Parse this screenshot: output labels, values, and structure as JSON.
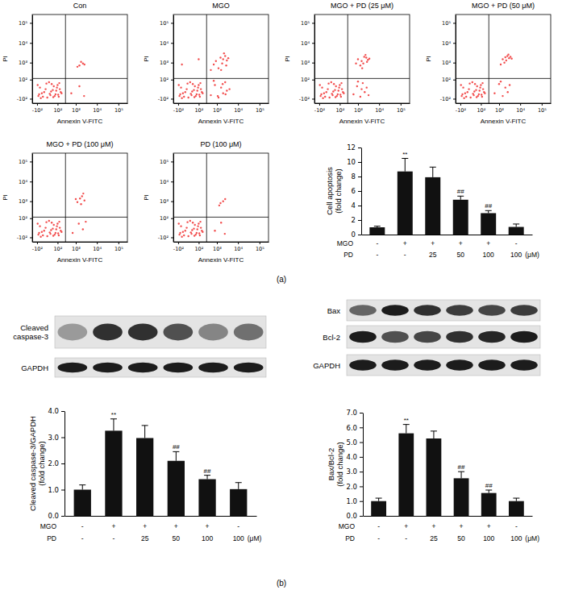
{
  "chart_data": [
    {
      "type": "scatter",
      "title": "Con",
      "xlabel": "Annexin V-FITC",
      "ylabel": "PI",
      "log": true,
      "color": "#f24e4e",
      "xlim": [
        -200,
        262144
      ],
      "ylim": [
        -200,
        262144
      ],
      "xticks": [
        {
          "value": -100,
          "label": "-10²"
        },
        {
          "value": 100,
          "label": "10²"
        },
        {
          "value": 1000,
          "label": "10³"
        },
        {
          "value": 10000,
          "label": "10⁴"
        },
        {
          "value": 100000,
          "label": "10⁵"
        }
      ],
      "yticks": [
        {
          "value": -100,
          "label": "-10²"
        },
        {
          "value": 100,
          "label": "10²"
        },
        {
          "value": 1000,
          "label": "10³"
        },
        {
          "value": 10000,
          "label": "10⁴"
        },
        {
          "value": 100000,
          "label": "10⁵"
        }
      ],
      "quadrant": {
        "x": 300,
        "y": 120
      },
      "x": [
        -80,
        -40,
        -10,
        20,
        50,
        80,
        120,
        160,
        -60,
        0,
        30,
        70,
        100,
        140,
        -20,
        10,
        60,
        90,
        -50,
        40,
        -90,
        -30,
        15,
        45,
        110,
        180,
        -70,
        25,
        130,
        -5,
        1500,
        2200,
        1800,
        2600,
        1200,
        600,
        1500,
        2500
      ],
      "values": [
        -60,
        -30,
        0,
        -50,
        20,
        -10,
        -70,
        -20,
        10,
        -80,
        40,
        -40,
        30,
        0,
        -20,
        60,
        -60,
        10,
        -90,
        -5,
        30,
        -70,
        -35,
        -75,
        -45,
        -30,
        -40,
        -15,
        50,
        45,
        700,
        900,
        1100,
        800,
        600,
        -30,
        20,
        -60
      ]
    },
    {
      "type": "scatter",
      "title": "MGO",
      "xlabel": "Annexin V-FITC",
      "ylabel": "PI",
      "log": true,
      "color": "#f24e4e",
      "xlim": [
        -200,
        262144
      ],
      "ylim": [
        -200,
        262144
      ],
      "xticks": [
        {
          "value": -100,
          "label": "-10²"
        },
        {
          "value": 100,
          "label": "10²"
        },
        {
          "value": 1000,
          "label": "10³"
        },
        {
          "value": 10000,
          "label": "10⁴"
        },
        {
          "value": 100000,
          "label": "10⁵"
        }
      ],
      "yticks": [
        {
          "value": -100,
          "label": "-10²"
        },
        {
          "value": 100,
          "label": "10²"
        },
        {
          "value": 1000,
          "label": "10³"
        },
        {
          "value": 10000,
          "label": "10⁴"
        },
        {
          "value": 100000,
          "label": "10⁵"
        }
      ],
      "quadrant": {
        "x": 300,
        "y": 120
      },
      "x": [
        -80,
        -40,
        -10,
        20,
        50,
        80,
        120,
        160,
        -60,
        0,
        30,
        70,
        100,
        140,
        -20,
        10,
        60,
        90,
        -50,
        40,
        -90,
        -30,
        15,
        45,
        110,
        180,
        -70,
        25,
        130,
        -5,
        900,
        1500,
        2000,
        2500,
        3000,
        1200,
        1800,
        2200,
        3500,
        700,
        1600,
        2800,
        500,
        800,
        1200,
        1600,
        2000,
        2500,
        3000,
        700,
        1100,
        1900,
        2600,
        4000,
        -50,
        100,
        500
      ],
      "values": [
        -60,
        -30,
        0,
        -50,
        20,
        -10,
        -70,
        -20,
        10,
        -80,
        40,
        -40,
        30,
        0,
        -20,
        60,
        -60,
        10,
        -90,
        -5,
        30,
        -70,
        -35,
        -75,
        -45,
        -30,
        -40,
        -15,
        50,
        45,
        1200,
        1800,
        1500,
        2200,
        1300,
        500,
        900,
        3000,
        1700,
        800,
        400,
        700,
        -50,
        30,
        -80,
        10,
        -30,
        60,
        -10,
        80,
        -60,
        40,
        -40,
        0,
        800,
        1500,
        400
      ]
    },
    {
      "type": "scatter",
      "title": "MGO + PD (25 μM)",
      "xlabel": "Annexin V-FITC",
      "ylabel": "PI",
      "log": true,
      "color": "#f24e4e",
      "xlim": [
        -200,
        262144
      ],
      "ylim": [
        -200,
        262144
      ],
      "xticks": [
        {
          "value": -100,
          "label": "-10²"
        },
        {
          "value": 100,
          "label": "10²"
        },
        {
          "value": 1000,
          "label": "10³"
        },
        {
          "value": 10000,
          "label": "10⁴"
        },
        {
          "value": 100000,
          "label": "10⁵"
        }
      ],
      "yticks": [
        {
          "value": -100,
          "label": "-10²"
        },
        {
          "value": 100,
          "label": "10²"
        },
        {
          "value": 1000,
          "label": "10³"
        },
        {
          "value": 10000,
          "label": "10⁴"
        },
        {
          "value": 100000,
          "label": "10⁵"
        }
      ],
      "quadrant": {
        "x": 300,
        "y": 120
      },
      "x": [
        -80,
        -40,
        -10,
        20,
        50,
        80,
        120,
        160,
        -60,
        0,
        30,
        70,
        100,
        140,
        -20,
        10,
        60,
        90,
        -50,
        40,
        -90,
        -30,
        15,
        45,
        110,
        180,
        -70,
        25,
        130,
        -5,
        1000,
        1500,
        2000,
        2500,
        3000,
        1300,
        1800,
        2300,
        3500,
        800,
        1600,
        2700,
        600,
        900,
        1300,
        1700,
        2100,
        2600,
        3200,
        1000,
        1500
      ],
      "values": [
        -60,
        -30,
        0,
        -50,
        20,
        -10,
        -70,
        -20,
        10,
        -80,
        40,
        -40,
        30,
        0,
        -20,
        60,
        -60,
        10,
        -90,
        -5,
        30,
        -70,
        -35,
        -75,
        -45,
        -30,
        -40,
        -15,
        50,
        45,
        1500,
        1200,
        2000,
        1800,
        1400,
        700,
        900,
        2500,
        1600,
        900,
        500,
        1100,
        -40,
        20,
        -70,
        50,
        -20,
        10,
        -50,
        70,
        0
      ]
    },
    {
      "type": "scatter",
      "title": "MGO + PD (50 μM)",
      "xlabel": "Annexin V-FITC",
      "ylabel": "PI",
      "log": true,
      "color": "#f24e4e",
      "xlim": [
        -200,
        262144
      ],
      "ylim": [
        -200,
        262144
      ],
      "xticks": [
        {
          "value": -100,
          "label": "-10²"
        },
        {
          "value": 100,
          "label": "10²"
        },
        {
          "value": 1000,
          "label": "10³"
        },
        {
          "value": 10000,
          "label": "10⁴"
        },
        {
          "value": 100000,
          "label": "10⁵"
        }
      ],
      "yticks": [
        {
          "value": -100,
          "label": "-10²"
        },
        {
          "value": 100,
          "label": "10²"
        },
        {
          "value": 1000,
          "label": "10³"
        },
        {
          "value": 10000,
          "label": "10⁴"
        },
        {
          "value": 100000,
          "label": "10⁵"
        }
      ],
      "quadrant": {
        "x": 300,
        "y": 120
      },
      "x": [
        -80,
        -40,
        -10,
        20,
        50,
        80,
        120,
        160,
        -60,
        0,
        30,
        70,
        100,
        140,
        -20,
        10,
        60,
        90,
        -50,
        40,
        -90,
        -30,
        15,
        45,
        110,
        180,
        -70,
        25,
        130,
        -5,
        1500,
        2000,
        2500,
        3000,
        3500,
        1200,
        2200,
        2800,
        1800,
        4000,
        600,
        1000,
        1500,
        2000,
        2600,
        3200,
        1200
      ],
      "values": [
        -60,
        -30,
        0,
        -50,
        20,
        -10,
        -70,
        -20,
        10,
        -80,
        40,
        -40,
        30,
        0,
        -20,
        60,
        -60,
        10,
        -90,
        -5,
        30,
        -70,
        -35,
        -75,
        -45,
        -30,
        -40,
        -15,
        50,
        45,
        1500,
        1900,
        2200,
        1700,
        2000,
        800,
        1300,
        2600,
        1000,
        1600,
        -30,
        40,
        -60,
        10,
        -20,
        30,
        70
      ]
    },
    {
      "type": "scatter",
      "title": "MGO + PD (100 μM)",
      "xlabel": "Annexin V-FITC",
      "ylabel": "PI",
      "log": true,
      "color": "#f24e4e",
      "xlim": [
        -200,
        262144
      ],
      "ylim": [
        -200,
        262144
      ],
      "xticks": [
        {
          "value": -100,
          "label": "-10²"
        },
        {
          "value": 100,
          "label": "10²"
        },
        {
          "value": 1000,
          "label": "10³"
        },
        {
          "value": 10000,
          "label": "10⁴"
        },
        {
          "value": 100000,
          "label": "10⁵"
        }
      ],
      "yticks": [
        {
          "value": -100,
          "label": "-10²"
        },
        {
          "value": 100,
          "label": "10²"
        },
        {
          "value": 1000,
          "label": "10³"
        },
        {
          "value": 10000,
          "label": "10⁴"
        },
        {
          "value": 100000,
          "label": "10⁵"
        }
      ],
      "quadrant": {
        "x": 300,
        "y": 120
      },
      "x": [
        -80,
        -40,
        -10,
        20,
        50,
        80,
        120,
        160,
        -60,
        0,
        30,
        70,
        100,
        140,
        -20,
        10,
        60,
        90,
        -50,
        40,
        -90,
        -30,
        15,
        45,
        110,
        180,
        -70,
        25,
        130,
        -5,
        1200,
        1600,
        2000,
        2600,
        1800,
        1000,
        2300,
        700,
        1400,
        2200,
        3000
      ],
      "values": [
        -60,
        -30,
        0,
        -50,
        20,
        -10,
        -70,
        -20,
        10,
        -80,
        40,
        -40,
        30,
        0,
        -20,
        60,
        -60,
        10,
        -90,
        -5,
        30,
        -70,
        -35,
        -75,
        -45,
        -30,
        -40,
        -15,
        50,
        45,
        900,
        1400,
        1800,
        1100,
        700,
        1300,
        2500,
        -40,
        30,
        -10,
        50
      ]
    },
    {
      "type": "scatter",
      "title": "PD (100 μM)",
      "xlabel": "Annexin V-FITC",
      "ylabel": "PI",
      "log": true,
      "color": "#f24e4e",
      "xlim": [
        -200,
        262144
      ],
      "ylim": [
        -200,
        262144
      ],
      "xticks": [
        {
          "value": -100,
          "label": "-10²"
        },
        {
          "value": 100,
          "label": "10²"
        },
        {
          "value": 1000,
          "label": "10³"
        },
        {
          "value": 10000,
          "label": "10⁴"
        },
        {
          "value": 100000,
          "label": "10⁵"
        }
      ],
      "yticks": [
        {
          "value": -100,
          "label": "-10²"
        },
        {
          "value": 100,
          "label": "10²"
        },
        {
          "value": 1000,
          "label": "10³"
        },
        {
          "value": 10000,
          "label": "10⁴"
        },
        {
          "value": 100000,
          "label": "10⁵"
        }
      ],
      "quadrant": {
        "x": 300,
        "y": 120
      },
      "x": [
        -80,
        -40,
        -10,
        20,
        50,
        80,
        120,
        160,
        -60,
        0,
        30,
        70,
        100,
        140,
        -20,
        10,
        60,
        90,
        -50,
        40,
        -90,
        -30,
        15,
        45,
        110,
        180,
        -70,
        25,
        130,
        -5,
        1500,
        2000,
        2500,
        1300,
        800,
        1600,
        2400
      ],
      "values": [
        -60,
        -30,
        0,
        -50,
        20,
        -10,
        -70,
        -20,
        10,
        -80,
        40,
        -40,
        30,
        0,
        -20,
        60,
        -60,
        10,
        -90,
        -5,
        30,
        -70,
        -35,
        -75,
        -45,
        -30,
        -40,
        -15,
        50,
        45,
        800,
        1000,
        1300,
        600,
        -20,
        40,
        -50
      ]
    },
    {
      "type": "bar",
      "ylabel": [
        "Cell apoptosis",
        "(fold change)"
      ],
      "categories": [
        null,
        null,
        null,
        null,
        null,
        null
      ],
      "tick_labels": "y",
      "color": "#111111",
      "ylim": [
        0,
        12
      ],
      "yticks": [
        0,
        2,
        4,
        6,
        8,
        10,
        12
      ],
      "values": [
        1.0,
        8.7,
        7.9,
        4.8,
        2.95,
        1.05
      ],
      "errors": [
        0.15,
        1.8,
        1.4,
        0.5,
        0.35,
        0.4
      ],
      "annotations": [
        {
          "index": 1,
          "text": "**"
        },
        {
          "index": 3,
          "text": "##"
        },
        {
          "index": 4,
          "text": "##"
        }
      ],
      "conditions": [
        {
          "label": "MGO",
          "values": [
            "-",
            "+",
            "+",
            "+",
            "+",
            "-"
          ]
        },
        {
          "label": "PD",
          "values": [
            "-",
            "-",
            "25",
            "50",
            "100",
            "100"
          ]
        }
      ],
      "unit": "(μM)"
    },
    {
      "type": "bar",
      "ylabel": [
        "Cleaved caspase-3/GAPDH",
        "(fold change)"
      ],
      "categories": [
        null,
        null,
        null,
        null,
        null,
        null
      ],
      "tick_labels": "y",
      "color": "#111111",
      "ylim": [
        0,
        4
      ],
      "yticks": [
        {
          "value": 0,
          "label": "0.0"
        },
        {
          "value": 1,
          "label": "1.0"
        },
        {
          "value": 2,
          "label": "2.0"
        },
        {
          "value": 3,
          "label": "3.0"
        },
        {
          "value": 4,
          "label": "4.0"
        }
      ],
      "values": [
        1.0,
        3.25,
        2.97,
        2.1,
        1.4,
        1.02
      ],
      "errors": [
        0.18,
        0.45,
        0.48,
        0.35,
        0.15,
        0.25
      ],
      "annotations": [
        {
          "index": 1,
          "text": "**"
        },
        {
          "index": 3,
          "text": "##"
        },
        {
          "index": 4,
          "text": "##"
        }
      ],
      "conditions": [
        {
          "label": "MGO",
          "values": [
            "-",
            "+",
            "+",
            "+",
            "+",
            "-"
          ]
        },
        {
          "label": "PD",
          "values": [
            "-",
            "-",
            "25",
            "50",
            "100",
            "100"
          ]
        }
      ],
      "unit": "(μM)",
      "blots": [
        {
          "label": [
            "Cleaved",
            "caspase-3"
          ],
          "intensity": [
            0.35,
            0.85,
            0.85,
            0.7,
            0.45,
            0.55
          ]
        },
        {
          "label": [
            "GAPDH"
          ],
          "intensity": [
            0.95,
            0.95,
            0.95,
            0.95,
            0.95,
            0.95
          ]
        }
      ]
    },
    {
      "type": "bar",
      "ylabel": [
        "Bax/Bcl-2",
        "(fold change)"
      ],
      "categories": [
        null,
        null,
        null,
        null,
        null,
        null
      ],
      "tick_labels": "y",
      "color": "#111111",
      "ylim": [
        0,
        7
      ],
      "yticks": [
        {
          "value": 0,
          "label": "0.0"
        },
        {
          "value": 1,
          "label": "1.0"
        },
        {
          "value": 2,
          "label": "2.0"
        },
        {
          "value": 3,
          "label": "3.0"
        },
        {
          "value": 4,
          "label": "4.0"
        },
        {
          "value": 5,
          "label": "5.0"
        },
        {
          "value": 6,
          "label": "6.0"
        },
        {
          "value": 7,
          "label": "7.0"
        }
      ],
      "values": [
        1.0,
        5.6,
        5.25,
        2.55,
        1.55,
        1.0
      ],
      "errors": [
        0.2,
        0.6,
        0.5,
        0.45,
        0.2,
        0.2
      ],
      "annotations": [
        {
          "index": 1,
          "text": "**"
        },
        {
          "index": 3,
          "text": "##"
        },
        {
          "index": 4,
          "text": "##"
        }
      ],
      "conditions": [
        {
          "label": "MGO",
          "values": [
            "-",
            "+",
            "+",
            "+",
            "+",
            "-"
          ]
        },
        {
          "label": "PD",
          "values": [
            "-",
            "-",
            "25",
            "50",
            "100",
            "100"
          ]
        }
      ],
      "unit": "(μM)",
      "blots": [
        {
          "label": [
            "Bax"
          ],
          "intensity": [
            0.6,
            0.95,
            0.85,
            0.8,
            0.75,
            0.8
          ]
        },
        {
          "label": [
            "Bcl-2"
          ],
          "intensity": [
            0.95,
            0.7,
            0.75,
            0.85,
            0.9,
            0.95
          ]
        },
        {
          "label": [
            "GAPDH"
          ],
          "intensity": [
            0.95,
            0.95,
            0.95,
            0.95,
            0.95,
            0.95
          ]
        }
      ]
    }
  ],
  "figure_labels": [
    "(a)",
    "(b)"
  ]
}
